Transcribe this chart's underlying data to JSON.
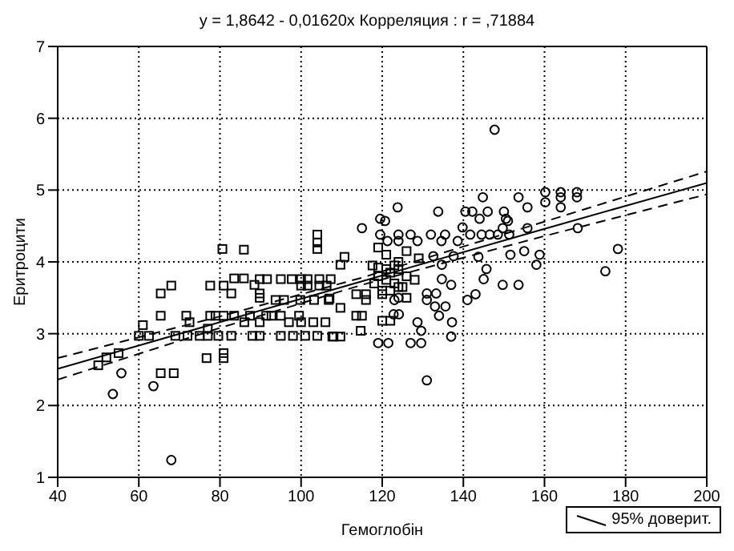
{
  "chart_data": {
    "type": "scatter",
    "title": "y = 1,8642 - 0,01620x  Корреляция : r = ,71884",
    "xlabel": "Гемоглобін",
    "ylabel": "Еритроцити",
    "xlim": [
      40,
      200
    ],
    "xticks": [
      40,
      60,
      80,
      100,
      120,
      140,
      160,
      180,
      200
    ],
    "ylim": [
      1,
      7
    ],
    "yticks": [
      1,
      2,
      3,
      4,
      5,
      6,
      7
    ],
    "grid": true,
    "legend": "bottom right",
    "series": [
      {
        "type": "scatter",
        "marker": "square",
        "color": "#000000",
        "x": [
          50,
          52,
          55,
          60,
          62.5,
          61,
          65.4,
          65.4,
          68,
          65.4,
          68.6,
          71.7,
          72.5,
          69,
          72,
          75,
          77,
          77,
          79.6,
          82.8,
          76.7,
          80.9,
          80.9,
          77.6,
          80.9,
          80.6,
          85.9,
          82.8,
          83.5,
          85.9,
          77.6,
          78.9,
          80.9,
          83.5,
          86,
          87.4,
          88,
          89.8,
          89.8,
          91.4,
          88.5,
          89.8,
          91.6,
          89.8,
          89.8,
          93.7,
          95,
          97.7,
          100,
          101.6,
          104.5,
          107.3,
          100,
          101.6,
          104.5,
          106.3,
          95.8,
          99.8,
          103.2,
          106.8,
          92.7,
          95,
          99.5,
          104,
          104,
          104,
          97,
          100,
          103,
          106,
          95,
          98,
          101,
          104,
          108,
          110.7,
          109.7,
          107,
          109.7,
          113.6,
          115,
          114.7,
          107.7,
          109.7,
          116,
          116,
          113.6,
          117.6,
          119,
          121,
          123,
          119,
          121,
          124,
          126,
          129,
          119,
          121,
          123,
          125,
          120,
          122,
          124,
          126,
          128,
          118,
          120,
          122,
          124,
          126,
          120,
          122
        ],
        "values": [
          2.56,
          2.67,
          2.73,
          2.97,
          2.97,
          3.12,
          3.25,
          3.56,
          3.67,
          2.45,
          2.45,
          3.25,
          3.16,
          2.97,
          2.97,
          2.97,
          2.97,
          3.07,
          2.97,
          2.97,
          2.66,
          2.73,
          2.66,
          3.67,
          3.67,
          4.18,
          4.17,
          3.56,
          3.77,
          3.77,
          3.25,
          3.25,
          3.25,
          3.25,
          3.16,
          3.25,
          2.97,
          2.97,
          3.16,
          3.25,
          3.68,
          3.76,
          3.76,
          3.56,
          3.5,
          3.47,
          3.76,
          3.76,
          3.76,
          3.76,
          3.76,
          3.76,
          3.67,
          3.67,
          3.67,
          3.67,
          3.47,
          3.47,
          3.47,
          3.47,
          3.25,
          3.25,
          3.25,
          4.38,
          4.27,
          4.18,
          3.16,
          3.16,
          3.16,
          3.16,
          2.97,
          2.97,
          2.97,
          2.97,
          2.96,
          4.07,
          3.96,
          3.49,
          3.36,
          3.25,
          3.25,
          3.04,
          2.96,
          2.96,
          3.55,
          3.47,
          3.55,
          3.95,
          3.92,
          3.9,
          3.95,
          4.2,
          4.1,
          4.0,
          4.15,
          4.05,
          3.8,
          3.75,
          3.7,
          3.65,
          3.6,
          3.85,
          3.9,
          3.8,
          3.75,
          3.7,
          3.55,
          3.6,
          3.65,
          3.5,
          3.18,
          3.18
        ]
      },
      {
        "type": "scatter",
        "marker": "circle",
        "color": "#000000",
        "x": [
          53.6,
          63.6,
          55.7,
          68,
          119,
          121.5,
          127,
          129.6,
          131,
          147.7,
          144.8,
          123.8,
          119.5,
          120.7,
          133.8,
          140.5,
          142.2,
          146,
          150,
          115,
          139.8,
          144,
          150.5,
          119.5,
          124,
          127,
          132,
          135.5,
          121.3,
          124,
          128.7,
          134.6,
          138.6,
          144.5,
          146.5,
          148.5,
          132.6,
          137.6,
          134.7,
          143.7,
          145.7,
          145,
          134.7,
          137,
          149.7,
          131,
          133.3,
          131,
          123,
          124,
          143,
          141,
          133,
          135.6,
          134,
          124.1,
          122.8,
          128.7,
          137.2,
          129.6,
          137,
          153.6,
          155.8,
          160.2,
          164,
          168,
          160.2,
          164,
          168,
          164,
          151,
          149.7,
          155.8,
          168.2,
          141.7,
          151.3,
          151.6,
          155,
          158.8,
          178.1,
          175,
          158,
          153.6
        ],
        "values": [
          2.16,
          2.27,
          2.45,
          1.24,
          2.87,
          2.87,
          2.87,
          2.87,
          2.35,
          5.84,
          4.9,
          4.76,
          4.6,
          4.57,
          4.7,
          4.7,
          4.7,
          4.7,
          4.7,
          4.47,
          4.48,
          4.6,
          4.6,
          4.38,
          4.38,
          4.38,
          4.38,
          4.38,
          4.29,
          4.29,
          4.29,
          4.29,
          4.29,
          4.38,
          4.38,
          4.38,
          4.08,
          4.08,
          3.96,
          4.07,
          3.9,
          3.76,
          3.76,
          3.68,
          3.68,
          3.56,
          3.56,
          3.47,
          3.47,
          3.5,
          3.55,
          3.47,
          3.38,
          3.38,
          3.25,
          3.27,
          3.27,
          3.16,
          3.16,
          3.04,
          2.96,
          4.9,
          4.76,
          4.97,
          4.97,
          4.97,
          4.83,
          4.9,
          4.9,
          4.76,
          4.57,
          4.47,
          4.47,
          4.47,
          4.38,
          4.38,
          4.1,
          4.15,
          4.1,
          4.18,
          3.87,
          3.96,
          3.68
        ]
      },
      {
        "type": "line",
        "name": "95% доверит.",
        "marker": "none",
        "line_style": "solid",
        "color": "#000000",
        "x": [
          40,
          80,
          115,
          160,
          200
        ],
        "values": [
          2.51,
          3.16,
          3.73,
          4.46,
          5.1
        ]
      },
      {
        "type": "line",
        "marker": "none",
        "line_style": "dashed",
        "color": "#000000",
        "x": [
          40,
          80,
          115,
          160,
          200
        ],
        "values": [
          2.36,
          3.08,
          3.68,
          4.36,
          4.94
        ]
      },
      {
        "type": "line",
        "marker": "none",
        "line_style": "dashed",
        "color": "#000000",
        "x": [
          40,
          80,
          115,
          160,
          200
        ],
        "values": [
          2.66,
          3.24,
          3.78,
          4.56,
          5.26
        ]
      }
    ]
  }
}
